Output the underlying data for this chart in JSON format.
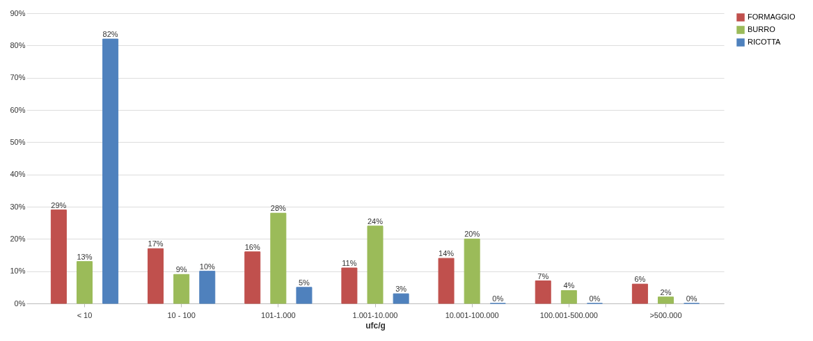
{
  "chart_data": {
    "type": "bar",
    "xlabel": "ufc/g",
    "categories": [
      "< 10",
      "10 - 100",
      "101-1.000",
      "1.001-10.000",
      "10.001-100.000",
      "100.001-500.000",
      ">500.000"
    ],
    "series": [
      {
        "name": "FORMAGGIO",
        "color": "#c0504d",
        "values": [
          29,
          17,
          16,
          11,
          14,
          7,
          6
        ],
        "value_labels": [
          "29%",
          "17%",
          "16%",
          "11%",
          "14%",
          "7%",
          "6%"
        ]
      },
      {
        "name": "BURRO",
        "color": "#9bbb59",
        "values": [
          13,
          9,
          28,
          24,
          20,
          4,
          2
        ],
        "value_labels": [
          "13%",
          "9%",
          "28%",
          "24%",
          "20%",
          "4%",
          "2%"
        ]
      },
      {
        "name": "RICOTTA",
        "color": "#4f81bd",
        "values": [
          82,
          10,
          5,
          3,
          0,
          0,
          0
        ],
        "value_labels": [
          "82%",
          "10%",
          "5%",
          "3%",
          "0%",
          "0%",
          "0%"
        ]
      }
    ],
    "ylim": [
      0,
      90
    ],
    "yticks": [
      {
        "value": 0,
        "label": "0%"
      },
      {
        "value": 10,
        "label": "10%"
      },
      {
        "value": 20,
        "label": "20%"
      },
      {
        "value": 30,
        "label": "30%"
      },
      {
        "value": 40,
        "label": "40%"
      },
      {
        "value": 50,
        "label": "50%"
      },
      {
        "value": 60,
        "label": "60%"
      },
      {
        "value": 70,
        "label": "70%"
      },
      {
        "value": 80,
        "label": "80%"
      },
      {
        "value": 90,
        "label": "90%"
      }
    ],
    "grid": "y",
    "legend": "right"
  }
}
